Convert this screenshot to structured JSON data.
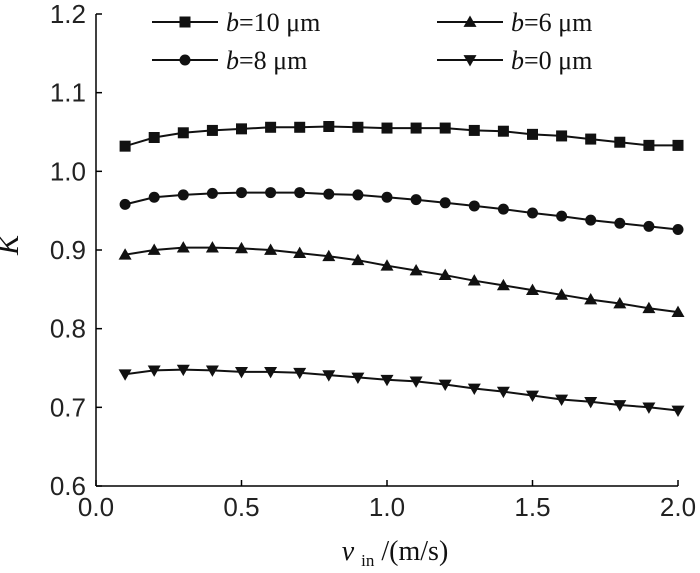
{
  "chart_data": {
    "type": "line",
    "title": "",
    "xlabel": "v_in/(m/s)",
    "xlabel_parts": {
      "var": "v",
      "sub": "in",
      "unit": "/(m/s)"
    },
    "ylabel": "K",
    "xlim": [
      0.0,
      2.0
    ],
    "ylim": [
      0.6,
      1.2
    ],
    "xticks": [
      "0.0",
      "0.5",
      "1.0",
      "1.5",
      "2.0"
    ],
    "yticks": [
      "0.6",
      "0.7",
      "0.8",
      "0.9",
      "1.0",
      "1.1",
      "1.2"
    ],
    "x": [
      0.1,
      0.2,
      0.3,
      0.4,
      0.5,
      0.6,
      0.7,
      0.8,
      0.9,
      1.0,
      1.1,
      1.2,
      1.3,
      1.4,
      1.5,
      1.6,
      1.7,
      1.8,
      1.9,
      2.0
    ],
    "grid": false,
    "legend_position": "top",
    "series": [
      {
        "name": "b=10 μm",
        "legend_var": "b",
        "legend_rest": "=10 μm",
        "marker": "square",
        "values": [
          1.032,
          1.043,
          1.049,
          1.052,
          1.054,
          1.056,
          1.056,
          1.057,
          1.056,
          1.055,
          1.055,
          1.055,
          1.052,
          1.051,
          1.047,
          1.045,
          1.041,
          1.037,
          1.033,
          1.033
        ]
      },
      {
        "name": "b=8 μm",
        "legend_var": "b",
        "legend_rest": "=8 μm",
        "marker": "circle",
        "values": [
          0.958,
          0.967,
          0.97,
          0.972,
          0.973,
          0.973,
          0.973,
          0.971,
          0.97,
          0.967,
          0.964,
          0.96,
          0.956,
          0.952,
          0.947,
          0.943,
          0.938,
          0.934,
          0.93,
          0.926
        ]
      },
      {
        "name": "b=6 μm",
        "legend_var": "b",
        "legend_rest": "=6 μm",
        "marker": "triangle-up",
        "values": [
          0.894,
          0.9,
          0.903,
          0.903,
          0.902,
          0.9,
          0.896,
          0.892,
          0.887,
          0.88,
          0.874,
          0.868,
          0.861,
          0.855,
          0.849,
          0.843,
          0.837,
          0.832,
          0.826,
          0.821
        ]
      },
      {
        "name": "b=0 μm",
        "legend_var": "b",
        "legend_rest": "=0 μm",
        "marker": "triangle-down",
        "values": [
          0.742,
          0.747,
          0.748,
          0.747,
          0.745,
          0.745,
          0.744,
          0.741,
          0.738,
          0.735,
          0.733,
          0.729,
          0.724,
          0.72,
          0.715,
          0.71,
          0.707,
          0.703,
          0.7,
          0.696
        ]
      }
    ]
  }
}
